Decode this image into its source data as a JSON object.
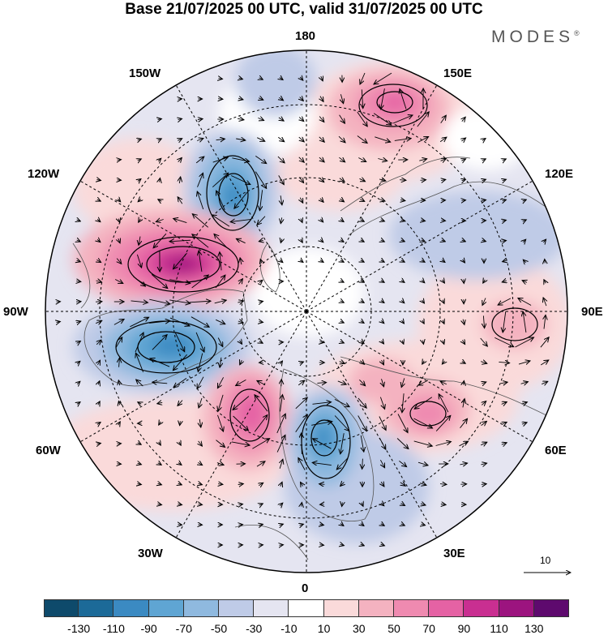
{
  "title": "Base 21/07/2025 00 UTC, valid 31/07/2025 00 UTC",
  "brand": "MODES",
  "brand_mark": "®",
  "map_labels": {
    "lon_180": "180",
    "lon_150w": "150W",
    "lon_150e": "150E",
    "lon_120w": "120W",
    "lon_120e": "120E",
    "lon_90w": "90W",
    "lon_90e": "90E",
    "lon_60w": "60W",
    "lon_60e": "60E",
    "lon_30w": "30W",
    "lon_30e": "30E",
    "lon_0": "0"
  },
  "reference_vector": "10",
  "colorbar": {
    "colors": [
      "#0e4a6b",
      "#1c6a98",
      "#3b8ac2",
      "#5fa5d3",
      "#8fb9df",
      "#bfcbe7",
      "#e5e5f1",
      "#ffffff",
      "#fadada",
      "#f4b2c0",
      "#ef8ab0",
      "#e562a4",
      "#c92f91",
      "#9c147f",
      "#5e0a6e"
    ],
    "ticks": [
      "-130",
      "-110",
      "-90",
      "-70",
      "-50",
      "-30",
      "-10",
      "10",
      "30",
      "50",
      "70",
      "90",
      "110",
      "130"
    ]
  }
}
